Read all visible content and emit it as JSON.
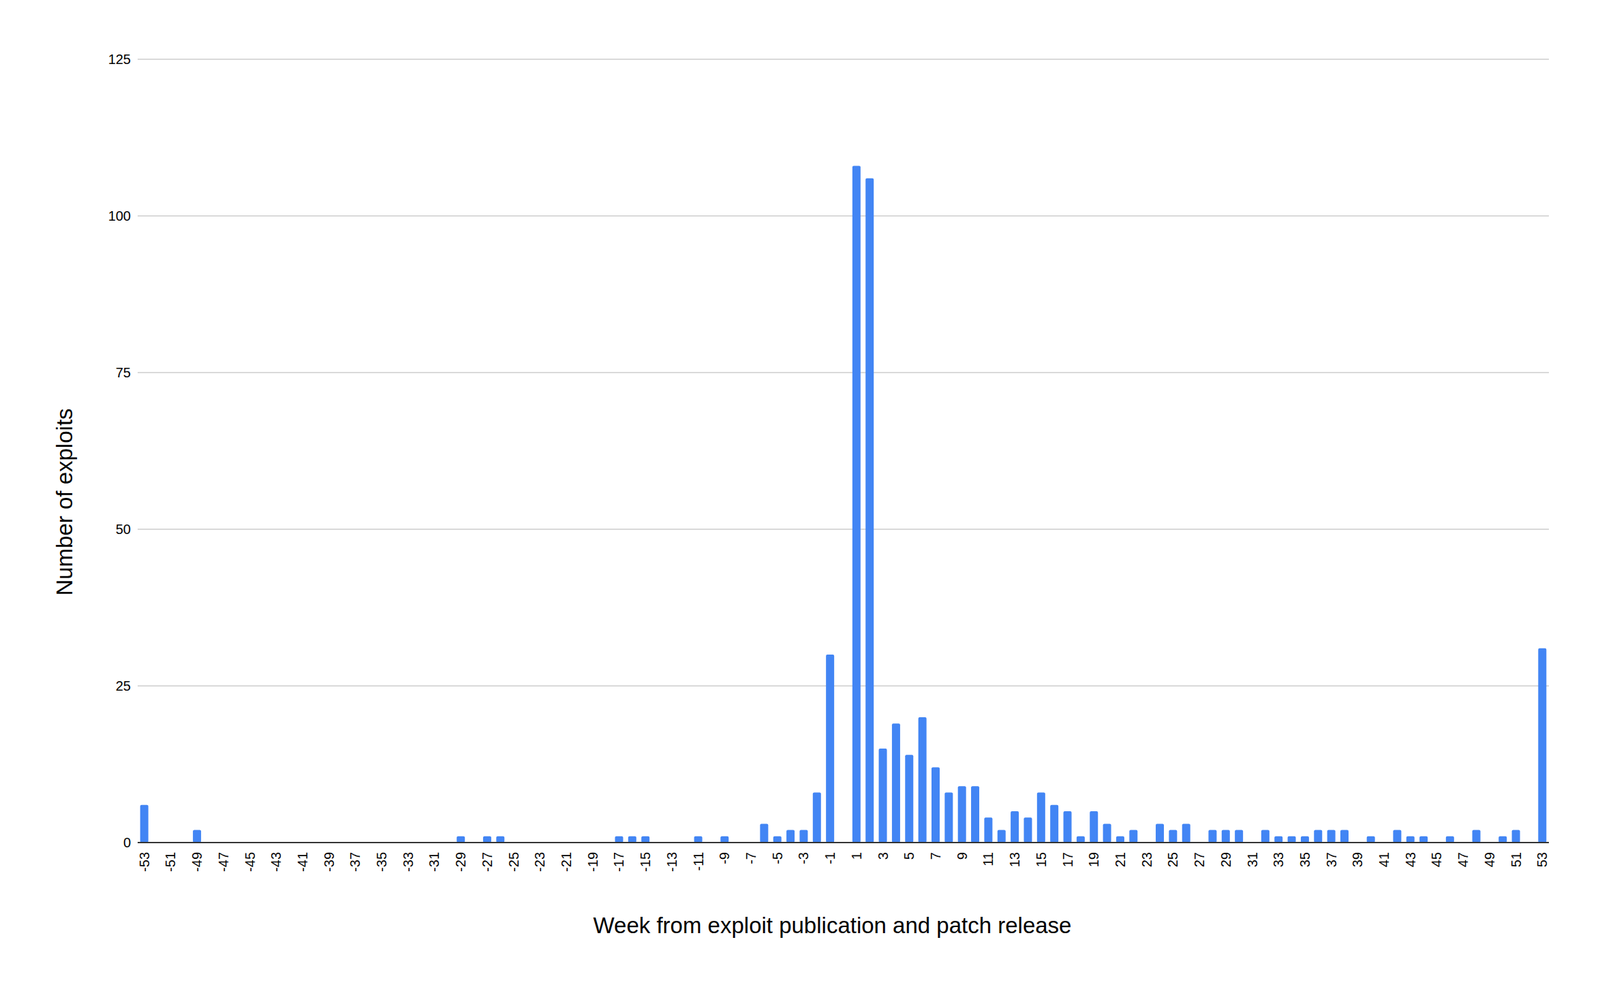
{
  "chart_data": {
    "type": "bar",
    "xlabel": "Week from exploit publication and patch release",
    "ylabel": "Number of exploits",
    "categories": [
      "-53",
      null,
      "-51",
      null,
      "-49",
      null,
      "-47",
      null,
      "-45",
      null,
      "-43",
      null,
      "-41",
      null,
      "-39",
      null,
      "-37",
      null,
      "-35",
      null,
      "-33",
      null,
      "-31",
      null,
      "-29",
      null,
      "-27",
      null,
      "-25",
      null,
      "-23",
      null,
      "-21",
      null,
      "-19",
      null,
      "-17",
      null,
      "-15",
      null,
      "-13",
      null,
      "-11",
      null,
      "-9",
      null,
      "-7",
      null,
      "-5",
      null,
      "-3",
      null,
      "-1",
      null,
      "1",
      null,
      "3",
      null,
      "5",
      null,
      "7",
      null,
      "9",
      null,
      "11",
      null,
      "13",
      null,
      "15",
      null,
      "17",
      null,
      "19",
      null,
      "21",
      null,
      "23",
      null,
      "25",
      null,
      "27",
      null,
      "29",
      null,
      "31",
      null,
      "33",
      null,
      "35",
      null,
      "37",
      null,
      "39",
      null,
      "41",
      null,
      "43",
      null,
      "45",
      null,
      "47",
      null,
      "49",
      null,
      "51",
      null,
      "53"
    ],
    "values": [
      6,
      0,
      0,
      0,
      2,
      0,
      0,
      0,
      0,
      0,
      0,
      0,
      0,
      0,
      0,
      0,
      0,
      0,
      0,
      0,
      0,
      0,
      0,
      0,
      1,
      0,
      1,
      1,
      0,
      0,
      0,
      0,
      0,
      0,
      0,
      0,
      1,
      1,
      1,
      0,
      0,
      0,
      1,
      0,
      1,
      0,
      0,
      3,
      1,
      2,
      2,
      8,
      30,
      0,
      108,
      106,
      15,
      19,
      14,
      20,
      12,
      8,
      9,
      9,
      4,
      2,
      5,
      4,
      8,
      6,
      5,
      1,
      5,
      3,
      1,
      2,
      0,
      3,
      2,
      3,
      0,
      2,
      2,
      2,
      0,
      2,
      1,
      1,
      1,
      2,
      2,
      2,
      0,
      1,
      0,
      2,
      1,
      1,
      0,
      1,
      0,
      2,
      0,
      1,
      2,
      0,
      31
    ],
    "color": "#4285f4",
    "ylim": [
      0,
      125
    ],
    "yticks": [
      0,
      25,
      50,
      75,
      100,
      125
    ],
    "grid": true
  }
}
